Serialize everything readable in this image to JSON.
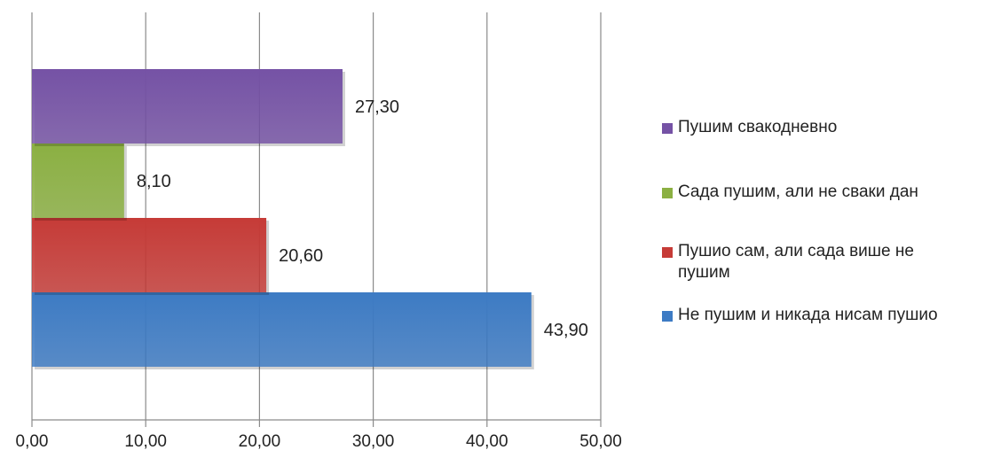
{
  "chart_data": {
    "type": "bar",
    "orientation": "horizontal",
    "categories": [
      "Не пушим и никада нисам пушио",
      "Пушио сам, али сада више не пушим",
      "Сада пушим, али не сваки дан",
      "Пушим свакодневно"
    ],
    "values": [
      43.9,
      20.6,
      8.1,
      27.3
    ],
    "value_labels": [
      "43,90",
      "20,60",
      "8,10",
      "27,30"
    ],
    "colors": [
      "#3d7bc4",
      "#c63b37",
      "#8bb042",
      "#7552a5"
    ],
    "xlim": [
      0,
      50
    ],
    "x_ticks": [
      0,
      10,
      20,
      30,
      40,
      50
    ],
    "x_tick_labels": [
      "0,00",
      "10,00",
      "20,00",
      "30,00",
      "40,00",
      "50,00"
    ],
    "grid": "vertical",
    "legend_position": "right",
    "title": "",
    "xlabel": "",
    "ylabel": ""
  },
  "legend": {
    "items": [
      {
        "label": "Пушим свакодневно",
        "color": "#7552a5"
      },
      {
        "label": "Сада пушим, али не сваки дан",
        "color": "#8bb042"
      },
      {
        "label": "Пушио сам, али сада више не пушим",
        "color": "#c63b37"
      },
      {
        "label": "Не пушим и никада нисам пушио",
        "color": "#3d7bc4"
      }
    ]
  }
}
